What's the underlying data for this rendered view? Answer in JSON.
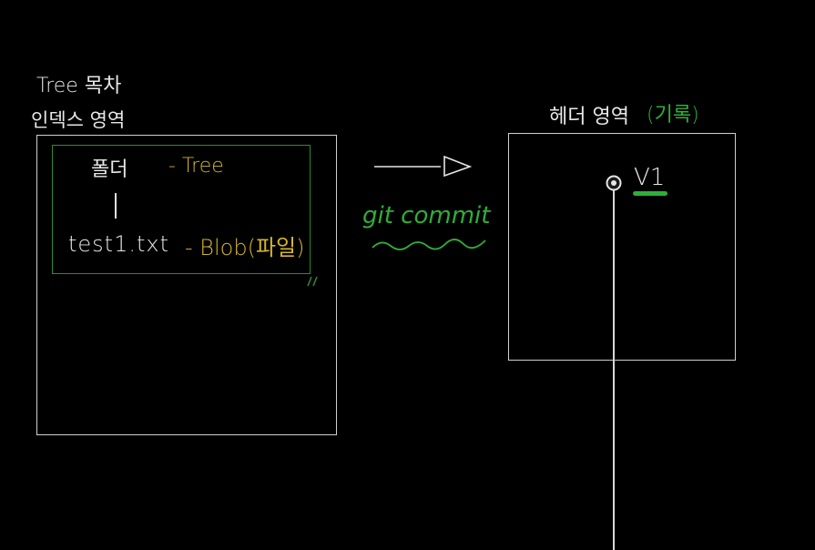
{
  "index_area": {
    "title_line1": "Tree 목차",
    "title_line2": "인덱스 영역"
  },
  "tree_structure": {
    "folder_label": "폴더",
    "folder_type": "- Tree",
    "file_label": "test1.txt",
    "file_type": "- Blob(파일)"
  },
  "command": {
    "label": "git commit"
  },
  "header_area": {
    "title": "헤더 영역",
    "title_suffix": "(기록)",
    "commit_label": "V1"
  },
  "colors": {
    "background": "#000000",
    "box_border": "#d0d0d0",
    "inner_border": "#2f8a34",
    "highlight_yellow": "#d6b52a",
    "highlight_green": "#2fae3a"
  }
}
